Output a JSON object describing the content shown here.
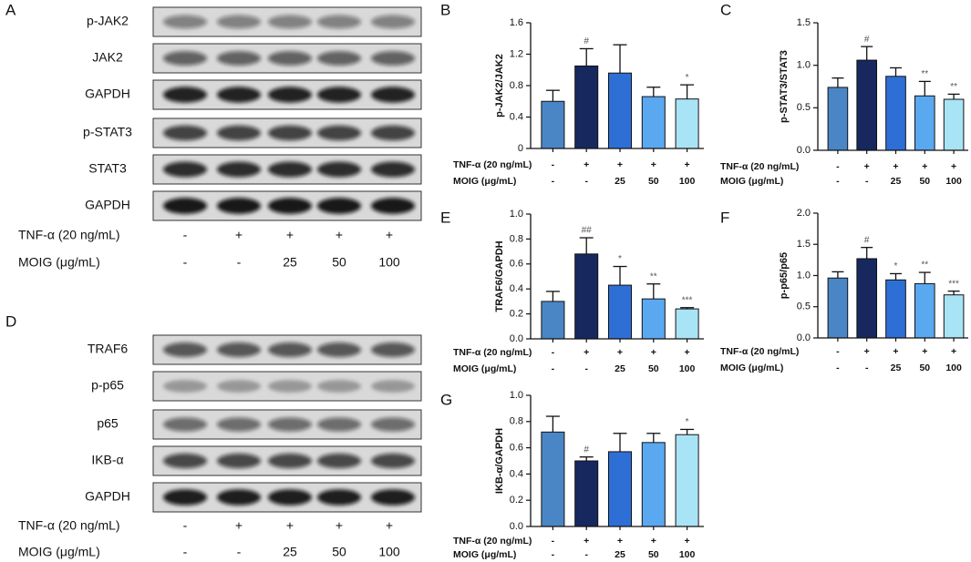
{
  "blots": [
    {
      "panel": "A",
      "rows": [
        "p-JAK2",
        "JAK2",
        "GAPDH",
        "p-STAT3",
        "STAT3",
        "GAPDH"
      ],
      "treatments": [
        {
          "label": "TNF-α (20 ng/mL)",
          "values": [
            "-",
            "+",
            "+",
            "+",
            "+"
          ]
        },
        {
          "label": "MOIG (μg/mL)",
          "values": [
            "-",
            "-",
            "25",
            "50",
            "100"
          ]
        }
      ]
    },
    {
      "panel": "D",
      "rows": [
        "TRAF6",
        "p-p65",
        "p65",
        "IKB-α",
        "GAPDH"
      ],
      "treatments": [
        {
          "label": "TNF-α (20 ng/mL)",
          "values": [
            "-",
            "+",
            "+",
            "+",
            "+"
          ]
        },
        {
          "label": "MOIG (μg/mL)",
          "values": [
            "-",
            "-",
            "25",
            "50",
            "100"
          ]
        }
      ]
    }
  ],
  "chart_data": [
    {
      "type": "bar",
      "panel": "B",
      "ylabel": "p-JAK2/JAK2",
      "values": [
        0.6,
        1.05,
        0.96,
        0.66,
        0.63
      ],
      "errors": [
        0.14,
        0.22,
        0.36,
        0.12,
        0.18
      ],
      "annotations": [
        null,
        "#",
        null,
        null,
        "*"
      ],
      "colors": [
        "#4a86c5",
        "#17285e",
        "#2e6fd6",
        "#5aa8f0",
        "#a8e4f5"
      ],
      "ylim": [
        0,
        1.6
      ],
      "yticks": [
        0,
        0.4,
        0.8,
        1.2,
        1.6
      ],
      "treatments": [
        {
          "label": "TNF-α (20 ng/mL)",
          "values": [
            "-",
            "+",
            "+",
            "+",
            "+"
          ]
        },
        {
          "label": "MOIG (μg/mL)",
          "values": [
            "-",
            "-",
            "25",
            "50",
            "100"
          ]
        }
      ]
    },
    {
      "type": "bar",
      "panel": "C",
      "ylabel": "p-STAT3/STAT3",
      "values": [
        0.74,
        1.06,
        0.87,
        0.64,
        0.6
      ],
      "errors": [
        0.11,
        0.16,
        0.1,
        0.17,
        0.06
      ],
      "annotations": [
        null,
        "#",
        null,
        "**",
        "**"
      ],
      "colors": [
        "#4a86c5",
        "#17285e",
        "#2e6fd6",
        "#5aa8f0",
        "#a8e4f5"
      ],
      "ylim": [
        0,
        1.5
      ],
      "yticks": [
        {
          "value": 0,
          "label": "0.0"
        },
        0.5,
        {
          "value": 1,
          "label": "1.0"
        },
        1.5
      ],
      "treatments": [
        {
          "label": "TNF-α (20 ng/mL)",
          "values": [
            "-",
            "+",
            "+",
            "+",
            "+"
          ]
        },
        {
          "label": "MOIG (μg/mL)",
          "values": [
            "-",
            "-",
            "25",
            "50",
            "100"
          ]
        }
      ]
    },
    {
      "type": "bar",
      "panel": "E",
      "ylabel": "TRAF6/GAPDH",
      "values": [
        0.3,
        0.68,
        0.43,
        0.32,
        0.24
      ],
      "errors": [
        0.08,
        0.13,
        0.15,
        0.12,
        0.01
      ],
      "annotations": [
        null,
        "##",
        "*",
        "**",
        "***"
      ],
      "colors": [
        "#4a86c5",
        "#17285e",
        "#2e6fd6",
        "#5aa8f0",
        "#a8e4f5"
      ],
      "ylim": [
        0,
        1
      ],
      "yticks": [
        {
          "value": 0,
          "label": "0.0"
        },
        0.2,
        0.4,
        0.6,
        0.8,
        {
          "value": 1,
          "label": "1.0"
        }
      ],
      "treatments": [
        {
          "label": "TNF-α (20 ng/mL)",
          "values": [
            "-",
            "+",
            "+",
            "+",
            "+"
          ]
        },
        {
          "label": "MOIG (μg/mL)",
          "values": [
            "-",
            "-",
            "25",
            "50",
            "100"
          ]
        }
      ]
    },
    {
      "type": "bar",
      "panel": "F",
      "ylabel": "p-p65/p65",
      "values": [
        0.96,
        1.27,
        0.93,
        0.87,
        0.69
      ],
      "errors": [
        0.1,
        0.18,
        0.1,
        0.18,
        0.06
      ],
      "annotations": [
        null,
        "#",
        "*",
        "**",
        "***"
      ],
      "colors": [
        "#4a86c5",
        "#17285e",
        "#2e6fd6",
        "#5aa8f0",
        "#a8e4f5"
      ],
      "ylim": [
        0,
        2
      ],
      "yticks": [
        {
          "value": 0,
          "label": "0.0"
        },
        0.5,
        {
          "value": 1,
          "label": "1.0"
        },
        1.5,
        {
          "value": 2,
          "label": "2.0"
        }
      ],
      "treatments": [
        {
          "label": "TNF-α (20 ng/mL)",
          "values": [
            "-",
            "+",
            "+",
            "+",
            "+"
          ]
        },
        {
          "label": "MOIG (μg/mL)",
          "values": [
            "-",
            "-",
            "25",
            "50",
            "100"
          ]
        }
      ]
    },
    {
      "type": "bar",
      "panel": "G",
      "ylabel": "IKB-α/GAPDH",
      "values": [
        0.72,
        0.5,
        0.57,
        0.64,
        0.7
      ],
      "errors": [
        0.12,
        0.03,
        0.14,
        0.07,
        0.04
      ],
      "annotations": [
        null,
        "#",
        null,
        null,
        "*"
      ],
      "colors": [
        "#4a86c5",
        "#17285e",
        "#2e6fd6",
        "#5aa8f0",
        "#a8e4f5"
      ],
      "ylim": [
        0,
        1
      ],
      "yticks": [
        {
          "value": 0,
          "label": "0.0"
        },
        0.2,
        0.4,
        0.6,
        0.8,
        {
          "value": 1,
          "label": "1.0"
        }
      ],
      "treatments": [
        {
          "label": "TNF-α (20 ng/mL)",
          "values": [
            "-",
            "+",
            "+",
            "+",
            "+"
          ]
        },
        {
          "label": "MOIG (μg/mL)",
          "values": [
            "-",
            "-",
            "25",
            "50",
            "100"
          ]
        }
      ]
    }
  ]
}
